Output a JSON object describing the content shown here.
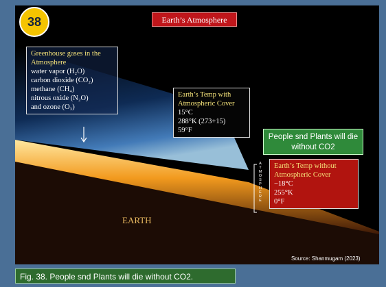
{
  "slide": {
    "number": "38",
    "title": "Earth’s Atmosphere",
    "greenhouse": {
      "heading": "Greenhouse gases in the Atmosphere",
      "items": [
        "water vapor (H₂O)",
        "carbon dioxide (CO₂)",
        "methane (CH₄)",
        "nitrous oxide (N₂O)",
        "and ozone (O₃)"
      ]
    },
    "with_cover": {
      "heading": "Earth’s Temp with Atmospheric Cover",
      "lines": [
        "15°C",
        "288°K (273+15)",
        "59°F"
      ]
    },
    "warning": "People snd Plants will die without CO2",
    "without_cover": {
      "heading": "Earth’s Temp without Atmospheric Cover",
      "lines": [
        "−18°C",
        "255°K",
        "0°F"
      ]
    },
    "atmosphere_label": "ATMOSPHERE",
    "earth_label": "EARTH",
    "source": "Source: Shanmugam (2023)"
  },
  "caption": "Fig. 38. People snd Plants will  die without CO2."
}
